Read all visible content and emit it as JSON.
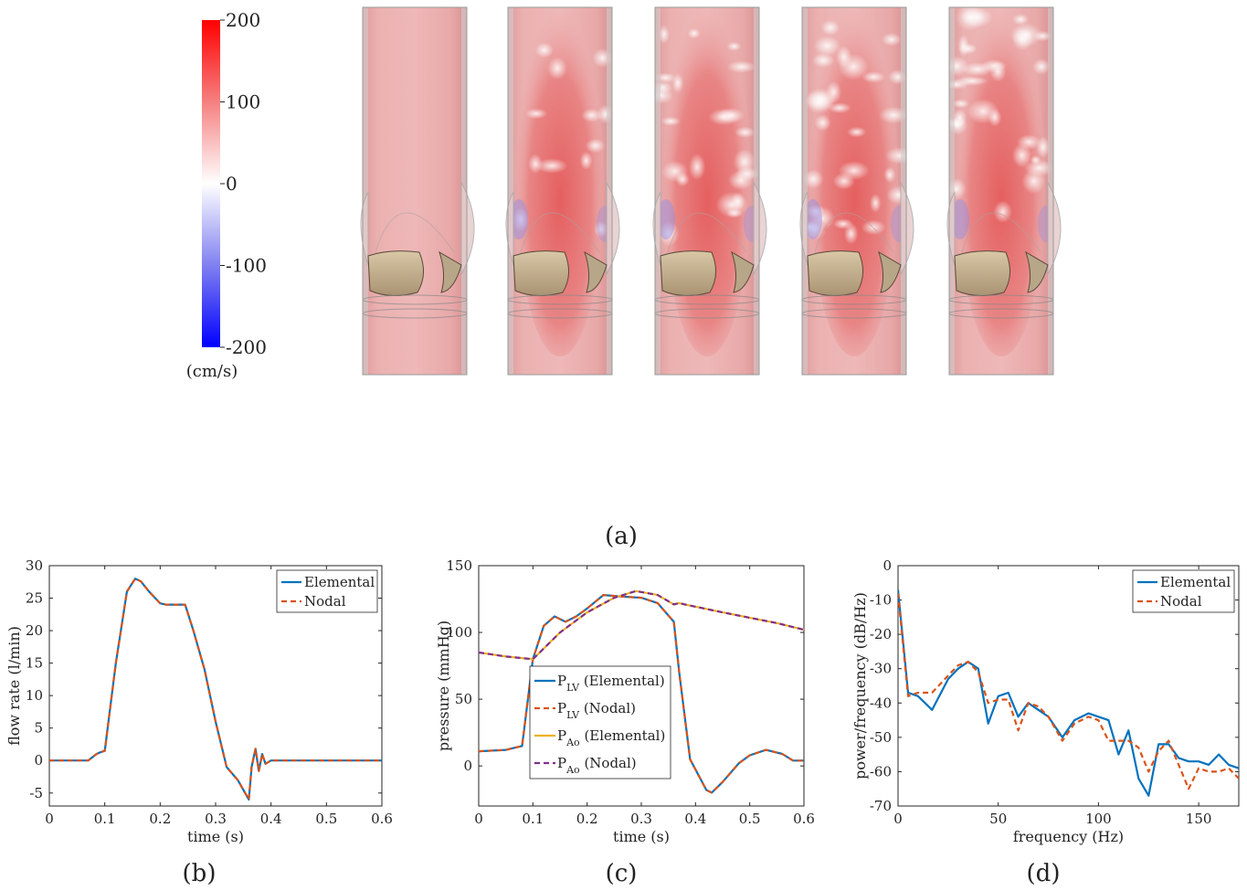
{
  "panel_a": {
    "colorbar": {
      "ticks": [
        "200",
        "100",
        "0",
        "-100",
        "-200"
      ],
      "range": [
        -200,
        200
      ],
      "unit": "(cm/s)",
      "colors": {
        "max": "#ff0000",
        "zero": "#ffffff",
        "min": "#0000ff"
      }
    },
    "frames": 5,
    "caption": "(a)"
  },
  "chart_data": [
    {
      "type": "line",
      "caption": "(b)",
      "xlabel": "time (s)",
      "ylabel": "flow rate (l/min)",
      "xlim": [
        0,
        0.6
      ],
      "ylim": [
        -7,
        30
      ],
      "xticks": [
        0,
        0.1,
        0.2,
        0.3,
        0.4,
        0.5,
        0.6
      ],
      "yticks": [
        -5,
        0,
        5,
        10,
        15,
        20,
        25,
        30
      ],
      "legend": "top-right",
      "series": [
        {
          "name": "Elemental",
          "color": "#0072bd",
          "style": "solid",
          "x": [
            0,
            0.07,
            0.085,
            0.09,
            0.1,
            0.12,
            0.14,
            0.155,
            0.165,
            0.18,
            0.2,
            0.21,
            0.23,
            0.245,
            0.26,
            0.28,
            0.3,
            0.32,
            0.34,
            0.35,
            0.36,
            0.365,
            0.372,
            0.378,
            0.384,
            0.39,
            0.4,
            0.5,
            0.6
          ],
          "y": [
            0,
            0,
            1,
            1.2,
            1.5,
            15,
            26,
            28,
            27.6,
            26,
            24.2,
            24,
            24,
            24,
            20,
            14,
            6,
            -1,
            -3,
            -4.5,
            -6,
            -1,
            1.8,
            -1.6,
            1,
            -0.5,
            0,
            0,
            0
          ]
        },
        {
          "name": "Nodal",
          "color": "#d95319",
          "style": "dashed",
          "x": [
            0,
            0.07,
            0.085,
            0.09,
            0.1,
            0.12,
            0.14,
            0.155,
            0.165,
            0.18,
            0.2,
            0.21,
            0.23,
            0.245,
            0.26,
            0.28,
            0.3,
            0.32,
            0.34,
            0.35,
            0.36,
            0.365,
            0.372,
            0.378,
            0.384,
            0.39,
            0.4,
            0.5,
            0.6
          ],
          "y": [
            0,
            0,
            1,
            1.2,
            1.5,
            15,
            26,
            28,
            27.6,
            26,
            24.2,
            24,
            24,
            24,
            20,
            14,
            6,
            -1,
            -3,
            -4.5,
            -6,
            -1,
            1.8,
            -1.6,
            1,
            -0.5,
            0,
            0,
            0
          ]
        }
      ]
    },
    {
      "type": "line",
      "caption": "(c)",
      "xlabel": "time (s)",
      "ylabel": "pressure (mmHg)",
      "xlim": [
        0,
        0.6
      ],
      "ylim": [
        -30,
        150
      ],
      "xticks": [
        0,
        0.1,
        0.2,
        0.3,
        0.4,
        0.5,
        0.6
      ],
      "yticks": [
        0,
        50,
        100,
        150
      ],
      "legend": "center-left",
      "series": [
        {
          "name": "P_LV (Elemental)",
          "label_main": "P",
          "label_sub": "LV",
          "label_tail": " (Elemental)",
          "color": "#0072bd",
          "style": "solid",
          "x": [
            0,
            0.05,
            0.08,
            0.1,
            0.12,
            0.14,
            0.16,
            0.18,
            0.2,
            0.23,
            0.26,
            0.3,
            0.33,
            0.36,
            0.37,
            0.39,
            0.42,
            0.43,
            0.45,
            0.48,
            0.5,
            0.53,
            0.56,
            0.58,
            0.6
          ],
          "y": [
            11,
            12,
            15,
            80,
            105,
            112,
            108,
            112,
            118,
            128,
            127,
            126,
            122,
            108,
            70,
            5,
            -18,
            -20,
            -12,
            2,
            8,
            12,
            9,
            4,
            4
          ]
        },
        {
          "name": "P_LV (Nodal)",
          "label_main": "P",
          "label_sub": "LV",
          "label_tail": " (Nodal)",
          "color": "#d95319",
          "style": "dashed",
          "x": [
            0,
            0.05,
            0.08,
            0.1,
            0.12,
            0.14,
            0.16,
            0.18,
            0.2,
            0.23,
            0.26,
            0.3,
            0.33,
            0.36,
            0.37,
            0.39,
            0.42,
            0.43,
            0.45,
            0.48,
            0.5,
            0.53,
            0.56,
            0.58,
            0.6
          ],
          "y": [
            11,
            12,
            15,
            80,
            105,
            112,
            108,
            112,
            118,
            128,
            127,
            126,
            122,
            108,
            70,
            5,
            -18,
            -20,
            -12,
            2,
            8,
            12,
            9,
            4,
            4
          ]
        },
        {
          "name": "P_Ao (Elemental)",
          "label_main": "P",
          "label_sub": "Ao",
          "label_tail": " (Elemental)",
          "color": "#edb120",
          "style": "solid",
          "x": [
            0,
            0.05,
            0.1,
            0.15,
            0.2,
            0.25,
            0.29,
            0.33,
            0.36,
            0.37,
            0.38,
            0.45,
            0.5,
            0.55,
            0.6
          ],
          "y": [
            85,
            82,
            80,
            100,
            115,
            126,
            131,
            128,
            121,
            122,
            121,
            115,
            111,
            107,
            102
          ]
        },
        {
          "name": "P_Ao (Nodal)",
          "label_main": "P",
          "label_sub": "Ao",
          "label_tail": " (Nodal)",
          "color": "#7e2f8e",
          "style": "dashed",
          "x": [
            0,
            0.05,
            0.1,
            0.15,
            0.2,
            0.25,
            0.29,
            0.33,
            0.36,
            0.37,
            0.38,
            0.45,
            0.5,
            0.55,
            0.6
          ],
          "y": [
            85,
            82,
            80,
            100,
            115,
            126,
            131,
            128,
            121,
            122,
            121,
            115,
            111,
            107,
            102
          ]
        }
      ]
    },
    {
      "type": "line",
      "caption": "(d)",
      "xlabel": "frequency (Hz)",
      "ylabel": "power/frequency (dB/Hz)",
      "xlim": [
        0,
        170
      ],
      "ylim": [
        -70,
        0
      ],
      "xticks": [
        0,
        50,
        100,
        150
      ],
      "yticks": [
        -70,
        -60,
        -50,
        -40,
        -30,
        -20,
        -10,
        0
      ],
      "legend": "top-right",
      "series": [
        {
          "name": "Elemental",
          "color": "#0072bd",
          "style": "solid",
          "x": [
            0,
            5,
            10,
            17,
            25,
            30,
            35,
            40,
            45,
            50,
            55,
            60,
            65,
            70,
            75,
            82,
            88,
            95,
            100,
            105,
            110,
            115,
            120,
            125,
            130,
            135,
            140,
            145,
            150,
            155,
            160,
            165,
            170
          ],
          "y": [
            -7,
            -37,
            -38,
            -42,
            -33,
            -30,
            -28,
            -30,
            -46,
            -38,
            -37,
            -44,
            -40,
            -42,
            -44,
            -50,
            -45,
            -43,
            -44,
            -45,
            -55,
            -48,
            -62,
            -67,
            -52,
            -52,
            -56,
            -57,
            -57,
            -58,
            -55,
            -58,
            -59
          ]
        },
        {
          "name": "Nodal",
          "color": "#d95319",
          "style": "dashed",
          "x": [
            0,
            5,
            10,
            17,
            25,
            30,
            35,
            40,
            45,
            50,
            55,
            60,
            65,
            70,
            75,
            82,
            88,
            95,
            100,
            105,
            110,
            115,
            120,
            125,
            130,
            135,
            140,
            145,
            150,
            155,
            160,
            165,
            170
          ],
          "y": [
            -8,
            -38,
            -37,
            -37,
            -32,
            -29,
            -28,
            -31,
            -40,
            -39,
            -39,
            -48,
            -40,
            -41,
            -44,
            -51,
            -46,
            -44,
            -45,
            -51,
            -51,
            -51,
            -53,
            -60,
            -54,
            -51,
            -58,
            -65,
            -59,
            -60,
            -60,
            -59,
            -62
          ]
        }
      ]
    }
  ]
}
